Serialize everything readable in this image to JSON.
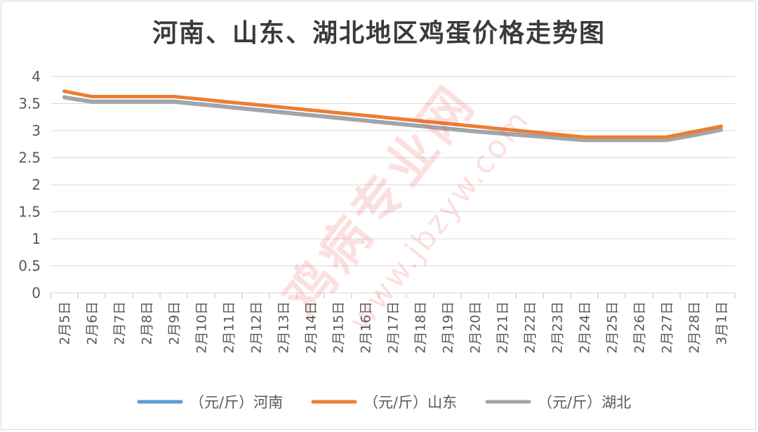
{
  "chart_data": {
    "type": "line",
    "title": "河南、山东、湖北地区鸡蛋价格走势图",
    "categories": [
      "2月5日",
      "2月6日",
      "2月7日",
      "2月8日",
      "2月9日",
      "2月10日",
      "2月11日",
      "2月12日",
      "2月13日",
      "2月14日",
      "2月15日",
      "2月16日",
      "2月17日",
      "2月18日",
      "2月19日",
      "2月20日",
      "2月21日",
      "2月22日",
      "2月23日",
      "2月24日",
      "2月25日",
      "2月26日",
      "2月27日",
      "2月28日",
      "3月1日"
    ],
    "ylim": [
      0,
      4
    ],
    "yticks": [
      "0",
      "0.5",
      "1",
      "1.5",
      "2",
      "2.5",
      "3",
      "3.5",
      "4"
    ],
    "grid": true,
    "legend_position": "bottom",
    "series": [
      {
        "name": "（元/斤）河南",
        "color": "#5b9bd5",
        "values": [
          3.62,
          3.54,
          3.54,
          3.54,
          3.54,
          3.49,
          3.44,
          3.39,
          3.34,
          3.29,
          3.24,
          3.19,
          3.14,
          3.09,
          3.04,
          2.99,
          2.95,
          2.91,
          2.87,
          2.83,
          2.83,
          2.83,
          2.83,
          2.92,
          3.02
        ]
      },
      {
        "name": "（元/斤）山东",
        "color": "#ed7d31",
        "values": [
          3.73,
          3.63,
          3.63,
          3.63,
          3.63,
          3.58,
          3.53,
          3.48,
          3.43,
          3.38,
          3.33,
          3.28,
          3.23,
          3.18,
          3.13,
          3.08,
          3.03,
          2.98,
          2.93,
          2.88,
          2.88,
          2.88,
          2.88,
          2.98,
          3.08
        ]
      },
      {
        "name": "（元/斤）湖北",
        "color": "#a5a5a5",
        "values": [
          3.61,
          3.53,
          3.53,
          3.53,
          3.53,
          3.48,
          3.43,
          3.38,
          3.33,
          3.28,
          3.23,
          3.18,
          3.13,
          3.08,
          3.03,
          2.98,
          2.94,
          2.9,
          2.86,
          2.82,
          2.82,
          2.82,
          2.82,
          2.91,
          3.01
        ]
      }
    ]
  },
  "watermark": {
    "text": "鸡病专业网",
    "url": "www.jbzyw.com",
    "color": "#e8463c"
  }
}
